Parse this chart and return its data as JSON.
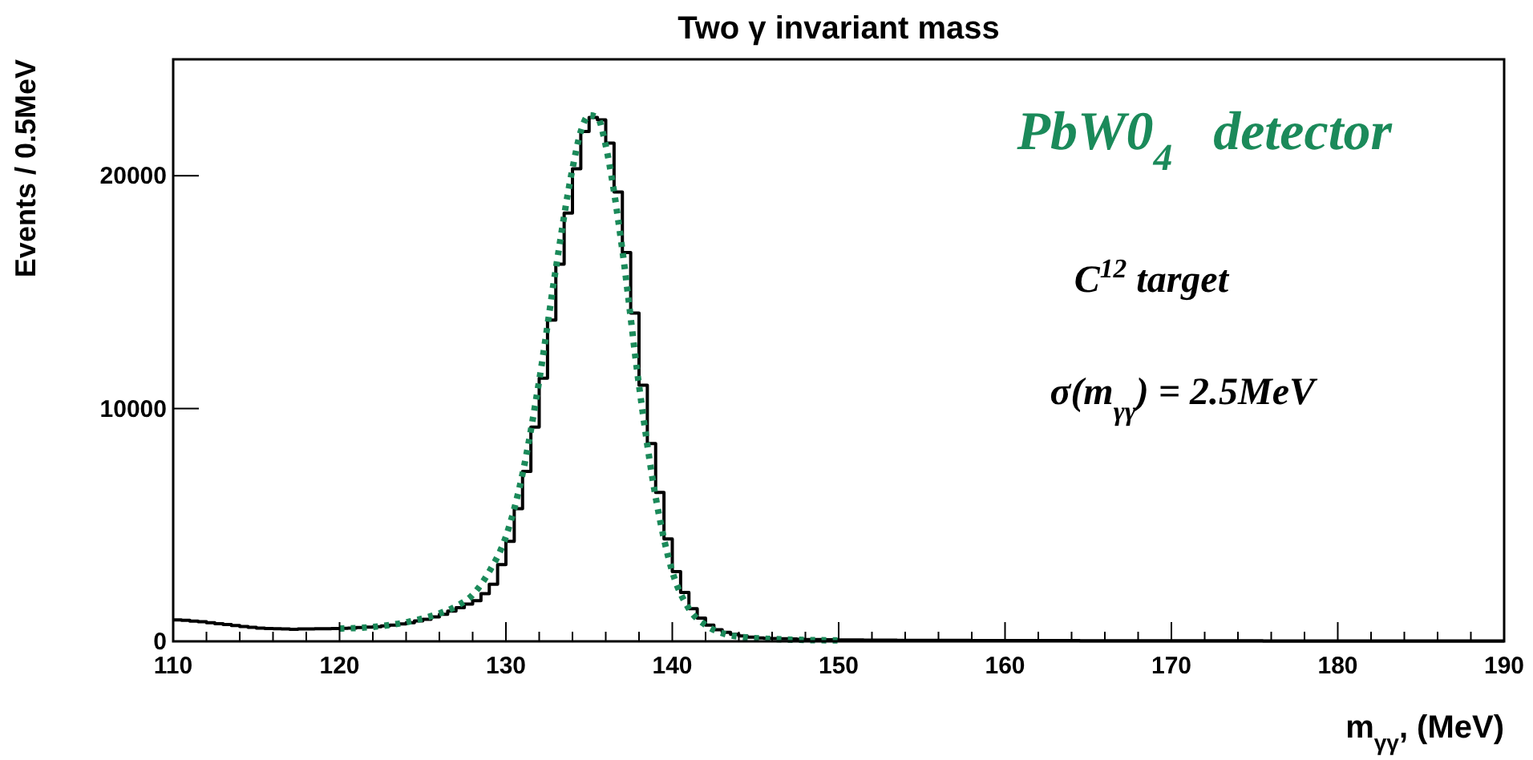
{
  "chart_data": {
    "type": "histogram",
    "title": "Two γ invariant mass",
    "xlabel": "m$_{γγ}$, (MeV)",
    "ylabel": "Events / 0.5MeV",
    "annotations": [
      "PbW0$_{4}$   detector",
      "C$^{12}$ target",
      "σ(m$_{γγ}$) = 2.5MeV"
    ],
    "bins": [
      110,
      110.5,
      111,
      111.5,
      112,
      112.5,
      113,
      113.5,
      114,
      114.5,
      115,
      115.5,
      116,
      116.5,
      117,
      117.5,
      118,
      118.5,
      119,
      119.5,
      120,
      120.5,
      121,
      121.5,
      122,
      122.5,
      123,
      123.5,
      124,
      124.5,
      125,
      125.5,
      126,
      126.5,
      127,
      127.5,
      128,
      128.5,
      129,
      129.5,
      130,
      130.5,
      131,
      131.5,
      132,
      132.5,
      133,
      133.5,
      134,
      134.5,
      135,
      135.5,
      136,
      136.5,
      137,
      137.5,
      138,
      138.5,
      139,
      139.5,
      140,
      140.5,
      141,
      141.5,
      142,
      142.5,
      143,
      143.5,
      144,
      144.5,
      145,
      145.5,
      146,
      146.5,
      147,
      147.5,
      148,
      148.5,
      149,
      149.5,
      150,
      150.5,
      151,
      151.5,
      152,
      152.5,
      153,
      153.5,
      154,
      154.5,
      155,
      155.5,
      156,
      156.5,
      157,
      157.5,
      158,
      158.5,
      159,
      159.5,
      160,
      160.5,
      161,
      161.5,
      162,
      162.5,
      163,
      163.5,
      164,
      164.5,
      165,
      165.5,
      166,
      166.5,
      167,
      167.5,
      168,
      168.5,
      169,
      169.5,
      170,
      170.5,
      171,
      171.5,
      172,
      172.5,
      173,
      173.5,
      174,
      174.5,
      175,
      175.5,
      176,
      176.5,
      177,
      177.5,
      178,
      178.5,
      179,
      179.5,
      180,
      180.5,
      181,
      181.5,
      182,
      182.5,
      183,
      183.5,
      184,
      184.5,
      185,
      185.5,
      186,
      186.5,
      187,
      187.5,
      188,
      188.5,
      189,
      189.5,
      190
    ],
    "series": [
      {
        "type": "histogram",
        "color": "#000000",
        "values": [
          920,
          900,
          870,
          840,
          800,
          760,
          720,
          680,
          640,
          600,
          570,
          550,
          540,
          530,
          520,
          530,
          530,
          540,
          540,
          550,
          560,
          570,
          590,
          610,
          630,
          660,
          700,
          750,
          800,
          880,
          950,
          1050,
          1160,
          1300,
          1450,
          1600,
          1750,
          2050,
          2450,
          3300,
          4300,
          5700,
          7300,
          9200,
          11300,
          13800,
          16200,
          18400,
          20300,
          21900,
          22500,
          22400,
          21400,
          19300,
          16700,
          14100,
          11000,
          8500,
          6400,
          4400,
          3000,
          2100,
          1400,
          1000,
          700,
          500,
          390,
          300,
          230,
          180,
          150,
          130,
          120,
          110,
          100,
          90,
          80,
          75,
          70,
          65,
          60,
          58,
          56,
          54,
          52,
          50,
          48,
          47,
          46,
          45,
          44,
          43,
          42,
          41,
          40,
          39,
          38,
          37,
          36,
          35,
          35,
          34,
          34,
          33,
          33,
          32,
          32,
          31,
          31,
          30,
          30,
          29,
          29,
          28,
          28,
          27,
          27,
          26,
          26,
          25,
          25,
          25,
          24,
          24,
          24,
          23,
          23,
          23,
          22,
          22,
          22,
          21,
          21,
          21,
          20,
          20,
          20,
          19,
          19,
          19,
          19,
          18,
          18,
          18,
          18,
          17,
          17,
          17,
          17,
          16,
          16,
          16,
          16,
          15,
          15,
          15,
          15,
          15,
          14,
          14
        ]
      },
      {
        "type": "line",
        "color": "#1b8a5a",
        "line_style": "dotted",
        "x": [
          120,
          122,
          124,
          126,
          127,
          128,
          129,
          130,
          131,
          132,
          133,
          134,
          134.5,
          135,
          135.5,
          136,
          136.5,
          137,
          138,
          139,
          140,
          141,
          142,
          143,
          144,
          146,
          148,
          150
        ],
        "values": [
          550,
          620,
          820,
          1200,
          1500,
          2000,
          3000,
          4500,
          7200,
          11200,
          16000,
          20300,
          21900,
          22600,
          22500,
          21300,
          19300,
          16800,
          11000,
          6200,
          3000,
          1400,
          700,
          350,
          200,
          100,
          60,
          40
        ]
      }
    ],
    "xlim": [
      110,
      190
    ],
    "ylim": [
      0,
      25000
    ],
    "xticks": [
      110,
      {
        "value": 112,
        "label": null
      },
      {
        "value": 114,
        "label": null
      },
      {
        "value": 116,
        "label": null
      },
      {
        "value": 118,
        "label": null
      },
      120,
      {
        "value": 122,
        "label": null
      },
      {
        "value": 124,
        "label": null
      },
      {
        "value": 126,
        "label": null
      },
      {
        "value": 128,
        "label": null
      },
      130,
      {
        "value": 132,
        "label": null
      },
      {
        "value": 134,
        "label": null
      },
      {
        "value": 136,
        "label": null
      },
      {
        "value": 138,
        "label": null
      },
      140,
      {
        "value": 142,
        "label": null
      },
      {
        "value": 144,
        "label": null
      },
      {
        "value": 146,
        "label": null
      },
      {
        "value": 148,
        "label": null
      },
      150,
      {
        "value": 152,
        "label": null
      },
      {
        "value": 154,
        "label": null
      },
      {
        "value": 156,
        "label": null
      },
      {
        "value": 158,
        "label": null
      },
      160,
      {
        "value": 162,
        "label": null
      },
      {
        "value": 164,
        "label": null
      },
      {
        "value": 166,
        "label": null
      },
      {
        "value": 168,
        "label": null
      },
      170,
      {
        "value": 172,
        "label": null
      },
      {
        "value": 174,
        "label": null
      },
      {
        "value": 176,
        "label": null
      },
      {
        "value": 178,
        "label": null
      },
      180,
      {
        "value": 182,
        "label": null
      },
      {
        "value": 184,
        "label": null
      },
      {
        "value": 186,
        "label": null
      },
      {
        "value": 188,
        "label": null
      },
      190
    ],
    "yticks": [
      0,
      10000,
      20000
    ],
    "grid": false
  }
}
